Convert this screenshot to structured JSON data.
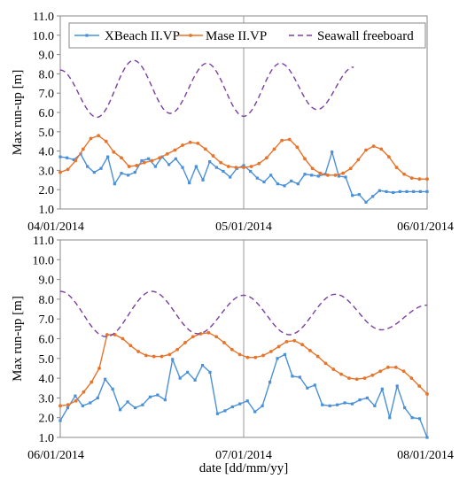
{
  "chart_data": [
    {
      "type": "line",
      "title": "",
      "xlabel": "",
      "ylabel": "Max run-up [m]",
      "ylim": [
        1.0,
        11.0
      ],
      "yticks": [
        "1.0",
        "2.0",
        "3.0",
        "4.0",
        "5.0",
        "6.0",
        "7.0",
        "8.0",
        "9.0",
        "10.0",
        "11.0"
      ],
      "x_range": [
        "04/01/2014",
        "06/01/2014"
      ],
      "x_tick_labels": [
        "04/01/2014",
        "05/01/2014",
        "06/01/2014"
      ],
      "legend": {
        "placement": "top",
        "entries": [
          "XBeach II.VP",
          "Mase II.VP",
          "Seawall freeboard"
        ]
      },
      "gridlines": "vertical at 05/01/2014",
      "series": [
        {
          "name": "XBeach II.VP",
          "color": "#4a90d9",
          "style": "solid-markers",
          "t": [
            0,
            1,
            2,
            3,
            4,
            5,
            6,
            7,
            8,
            9,
            10,
            11,
            12,
            13,
            14,
            15,
            16,
            17,
            18,
            19,
            20,
            21,
            22,
            23,
            24,
            25,
            26,
            27,
            28,
            29,
            30,
            31,
            32,
            33,
            34,
            35,
            36,
            37,
            38,
            39,
            40,
            41,
            42,
            43,
            44,
            45,
            46,
            47,
            48,
            49,
            50,
            51,
            52,
            53,
            54
          ],
          "values": [
            3.7,
            3.65,
            3.55,
            3.85,
            3.2,
            2.9,
            3.1,
            3.7,
            2.3,
            2.85,
            2.75,
            2.9,
            3.5,
            3.6,
            3.2,
            3.7,
            3.3,
            3.6,
            3.15,
            2.35,
            3.2,
            2.5,
            3.45,
            3.15,
            2.95,
            2.65,
            3.1,
            3.25,
            2.95,
            2.6,
            2.4,
            2.75,
            2.3,
            2.2,
            2.45,
            2.3,
            2.8,
            2.75,
            2.7,
            2.8,
            3.95,
            2.7,
            2.65,
            1.7,
            1.75,
            1.35,
            1.65,
            1.95,
            1.9,
            1.85,
            1.9,
            1.9,
            1.9,
            1.9,
            1.9
          ]
        },
        {
          "name": "Mase II.VP",
          "color": "#e8732a",
          "style": "solid-markers",
          "t": [
            0,
            1,
            2,
            3,
            4,
            5,
            6,
            7,
            8,
            9,
            10,
            11,
            12,
            13,
            14,
            15,
            16,
            17,
            18,
            19,
            20,
            21,
            22,
            23,
            24,
            25,
            26,
            27,
            28,
            29,
            30,
            31,
            32,
            33,
            34,
            35,
            36,
            37,
            38,
            39,
            40,
            41,
            42,
            43,
            44,
            45,
            46,
            47,
            48
          ],
          "values": [
            2.9,
            3.05,
            3.5,
            4.1,
            4.65,
            4.8,
            4.5,
            3.95,
            3.65,
            3.2,
            3.25,
            3.4,
            3.5,
            3.65,
            3.85,
            4.05,
            4.3,
            4.45,
            4.4,
            4.1,
            3.75,
            3.4,
            3.2,
            3.15,
            3.15,
            3.2,
            3.35,
            3.65,
            4.1,
            4.55,
            4.6,
            4.2,
            3.6,
            3.1,
            2.85,
            2.75,
            2.75,
            2.85,
            3.1,
            3.55,
            4.05,
            4.25,
            4.1,
            3.7,
            3.15,
            2.8,
            2.6,
            2.55,
            2.55
          ]
        },
        {
          "name": "Seawall freeboard",
          "color": "#7b3fa0",
          "style": "dashed",
          "t": [
            0,
            4,
            8,
            13,
            18,
            23,
            28,
            33,
            38,
            43,
            48
          ],
          "values": [
            8.2,
            5.75,
            8.7,
            5.95,
            8.55,
            5.8,
            8.55,
            6.15,
            8.35,
            null,
            null
          ]
        }
      ]
    },
    {
      "type": "line",
      "title": "",
      "xlabel": "date [dd/mm/yy]",
      "ylabel": "Max run-up [m]",
      "ylim": [
        1.0,
        11.0
      ],
      "yticks": [
        "1.0",
        "2.0",
        "3.0",
        "4.0",
        "5.0",
        "6.0",
        "7.0",
        "8.0",
        "9.0",
        "10.0",
        "11.0"
      ],
      "x_range": [
        "06/01/2014",
        "08/01/2014"
      ],
      "x_tick_labels": [
        "06/01/2014",
        "07/01/2014",
        "08/01/2014"
      ],
      "gridlines": "vertical at 07/01/2014",
      "series": [
        {
          "name": "XBeach II.VP",
          "color": "#4a90d9",
          "style": "solid-markers",
          "values": [
            1.85,
            2.5,
            3.1,
            2.6,
            2.75,
            3.0,
            3.95,
            3.45,
            2.4,
            2.8,
            2.5,
            2.65,
            3.05,
            3.15,
            2.9,
            4.95,
            4.0,
            4.3,
            3.9,
            4.65,
            4.3,
            2.2,
            2.35,
            2.55,
            2.7,
            2.85,
            2.3,
            2.6,
            3.8,
            5.0,
            5.2,
            4.1,
            4.05,
            3.5,
            3.65,
            2.65,
            2.6,
            2.65,
            2.75,
            2.7,
            2.9,
            3.0,
            2.6,
            3.45,
            2.0,
            3.6,
            2.5,
            2.0,
            1.95,
            1.0
          ]
        },
        {
          "name": "Mase II.VP",
          "color": "#e8732a",
          "style": "solid-markers",
          "values": [
            2.6,
            2.65,
            2.85,
            3.3,
            3.8,
            4.5,
            6.2,
            6.2,
            6.0,
            5.65,
            5.35,
            5.15,
            5.1,
            5.1,
            5.2,
            5.45,
            5.8,
            6.1,
            6.25,
            6.3,
            6.1,
            5.8,
            5.45,
            5.2,
            5.05,
            5.05,
            5.15,
            5.35,
            5.6,
            5.85,
            5.9,
            5.7,
            5.4,
            5.1,
            4.75,
            4.45,
            4.2,
            4.0,
            3.95,
            4.0,
            4.15,
            4.35,
            4.55,
            4.55,
            4.35,
            4.0,
            3.6,
            3.2
          ]
        },
        {
          "name": "Seawall freeboard",
          "color": "#7b3fa0",
          "style": "dashed",
          "values": [
            8.4,
            6.1,
            8.4,
            6.25,
            8.2,
            6.2,
            8.25,
            6.45,
            7.7
          ]
        }
      ]
    }
  ]
}
